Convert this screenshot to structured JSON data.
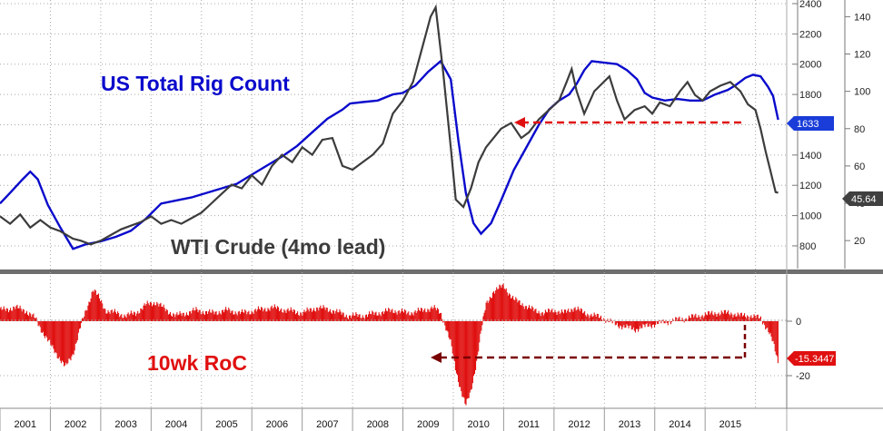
{
  "chart_data": [
    {
      "type": "line",
      "title": "",
      "annotations": {
        "rig_label": "US Total Rig Count",
        "wti_label": "WTI Crude (4mo lead)"
      },
      "x": [
        "2001",
        "2002",
        "2003",
        "2004",
        "2005",
        "2006",
        "2007",
        "2008",
        "2009",
        "2010",
        "2011",
        "2012",
        "2013",
        "2014",
        "2015"
      ],
      "y_left": {
        "ticks": [
          "800",
          "1000",
          "1200",
          "1400",
          "1600",
          "1800",
          "2000",
          "2200",
          "2400"
        ],
        "ylim": [
          650,
          2400
        ]
      },
      "y_right": {
        "ticks": [
          "20",
          "40",
          "60",
          "80",
          "100",
          "120",
          "140"
        ],
        "ylim": [
          5,
          147
        ]
      },
      "series": [
        {
          "name": "US Total Rig Count",
          "axis": "left",
          "color": "#0a0acc",
          "points": [
            [
              2000.0,
              1080
            ],
            [
              2000.2,
              1150
            ],
            [
              2000.45,
              1240
            ],
            [
              2000.6,
              1290
            ],
            [
              2000.75,
              1240
            ],
            [
              2000.95,
              1070
            ],
            [
              2001.2,
              920
            ],
            [
              2001.45,
              780
            ],
            [
              2001.7,
              810
            ],
            [
              2002.0,
              830
            ],
            [
              2002.3,
              860
            ],
            [
              2002.6,
              900
            ],
            [
              2002.9,
              980
            ],
            [
              2003.2,
              1080
            ],
            [
              2003.5,
              1100
            ],
            [
              2003.8,
              1120
            ],
            [
              2004.1,
              1150
            ],
            [
              2004.4,
              1180
            ],
            [
              2004.7,
              1210
            ],
            [
              2005.0,
              1270
            ],
            [
              2005.3,
              1330
            ],
            [
              2005.6,
              1390
            ],
            [
              2005.9,
              1460
            ],
            [
              2006.2,
              1550
            ],
            [
              2006.5,
              1640
            ],
            [
              2006.8,
              1700
            ],
            [
              2006.95,
              1740
            ],
            [
              2007.2,
              1750
            ],
            [
              2007.5,
              1760
            ],
            [
              2007.8,
              1800
            ],
            [
              2008.0,
              1810
            ],
            [
              2008.25,
              1860
            ],
            [
              2008.5,
              1950
            ],
            [
              2008.75,
              2020
            ],
            [
              2008.95,
              1900
            ],
            [
              2009.1,
              1500
            ],
            [
              2009.25,
              1150
            ],
            [
              2009.4,
              950
            ],
            [
              2009.55,
              880
            ],
            [
              2009.75,
              950
            ],
            [
              2009.95,
              1100
            ],
            [
              2010.2,
              1300
            ],
            [
              2010.45,
              1450
            ],
            [
              2010.7,
              1600
            ],
            [
              2010.9,
              1700
            ],
            [
              2011.1,
              1760
            ],
            [
              2011.3,
              1800
            ],
            [
              2011.45,
              1870
            ],
            [
              2011.6,
              1960
            ],
            [
              2011.75,
              2020
            ],
            [
              2012.0,
              2010
            ],
            [
              2012.25,
              2000
            ],
            [
              2012.45,
              1960
            ],
            [
              2012.65,
              1900
            ],
            [
              2012.8,
              1810
            ],
            [
              2012.95,
              1780
            ],
            [
              2013.2,
              1760
            ],
            [
              2013.45,
              1770
            ],
            [
              2013.7,
              1760
            ],
            [
              2013.95,
              1760
            ],
            [
              2014.2,
              1800
            ],
            [
              2014.45,
              1830
            ],
            [
              2014.6,
              1860
            ],
            [
              2014.8,
              1910
            ],
            [
              2014.95,
              1930
            ],
            [
              2015.1,
              1920
            ],
            [
              2015.25,
              1850
            ],
            [
              2015.35,
              1790
            ],
            [
              2015.45,
              1633
            ]
          ]
        },
        {
          "name": "WTI Crude (4mo lead)",
          "axis": "right",
          "color": "#3c3c3c",
          "points": [
            [
              2000.0,
              33
            ],
            [
              2000.2,
              29
            ],
            [
              2000.4,
              34
            ],
            [
              2000.6,
              27
            ],
            [
              2000.8,
              31
            ],
            [
              2001.0,
              27
            ],
            [
              2001.2,
              25
            ],
            [
              2001.45,
              21
            ],
            [
              2001.6,
              20
            ],
            [
              2001.8,
              18
            ],
            [
              2002.0,
              20
            ],
            [
              2002.2,
              23
            ],
            [
              2002.4,
              26
            ],
            [
              2002.6,
              28
            ],
            [
              2002.8,
              30
            ],
            [
              2003.0,
              33
            ],
            [
              2003.2,
              29
            ],
            [
              2003.4,
              31
            ],
            [
              2003.6,
              29
            ],
            [
              2003.8,
              32
            ],
            [
              2004.0,
              35
            ],
            [
              2004.2,
              40
            ],
            [
              2004.4,
              45
            ],
            [
              2004.6,
              50
            ],
            [
              2004.8,
              48
            ],
            [
              2005.0,
              55
            ],
            [
              2005.2,
              50
            ],
            [
              2005.4,
              60
            ],
            [
              2005.6,
              66
            ],
            [
              2005.8,
              62
            ],
            [
              2006.0,
              70
            ],
            [
              2006.2,
              66
            ],
            [
              2006.4,
              74
            ],
            [
              2006.6,
              75
            ],
            [
              2006.8,
              60
            ],
            [
              2007.0,
              58
            ],
            [
              2007.2,
              62
            ],
            [
              2007.4,
              66
            ],
            [
              2007.6,
              72
            ],
            [
              2007.8,
              88
            ],
            [
              2008.0,
              95
            ],
            [
              2008.2,
              105
            ],
            [
              2008.4,
              125
            ],
            [
              2008.55,
              140
            ],
            [
              2008.65,
              145
            ],
            [
              2008.8,
              110
            ],
            [
              2008.95,
              70
            ],
            [
              2009.05,
              42
            ],
            [
              2009.2,
              38
            ],
            [
              2009.35,
              48
            ],
            [
              2009.5,
              62
            ],
            [
              2009.65,
              70
            ],
            [
              2009.8,
              75
            ],
            [
              2009.95,
              80
            ],
            [
              2010.15,
              83
            ],
            [
              2010.35,
              75
            ],
            [
              2010.5,
              78
            ],
            [
              2010.7,
              85
            ],
            [
              2010.9,
              90
            ],
            [
              2011.1,
              95
            ],
            [
              2011.25,
              105
            ],
            [
              2011.35,
              112
            ],
            [
              2011.45,
              100
            ],
            [
              2011.6,
              88
            ],
            [
              2011.8,
              100
            ],
            [
              2011.95,
              104
            ],
            [
              2012.1,
              108
            ],
            [
              2012.25,
              95
            ],
            [
              2012.4,
              85
            ],
            [
              2012.6,
              90
            ],
            [
              2012.8,
              92
            ],
            [
              2012.95,
              88
            ],
            [
              2013.1,
              94
            ],
            [
              2013.3,
              92
            ],
            [
              2013.5,
              100
            ],
            [
              2013.65,
              105
            ],
            [
              2013.8,
              98
            ],
            [
              2013.95,
              95
            ],
            [
              2014.1,
              100
            ],
            [
              2014.3,
              103
            ],
            [
              2014.5,
              105
            ],
            [
              2014.7,
              100
            ],
            [
              2014.85,
              93
            ],
            [
              2015.0,
              90
            ],
            [
              2015.1,
              80
            ],
            [
              2015.2,
              68
            ],
            [
              2015.3,
              57
            ],
            [
              2015.4,
              46
            ],
            [
              2015.45,
              45.64
            ]
          ]
        }
      ],
      "last_values": {
        "rig": "1633",
        "wti": "45.64"
      },
      "colors": {
        "rig": "#0a0acc",
        "wti": "#3c3c3c",
        "arrow": "#e01010",
        "roc": "#e01010",
        "roc_arrow": "#7a0000",
        "grid": "#a8a8a8"
      }
    },
    {
      "type": "bar",
      "annotations": {
        "roc_label": "10wk RoC"
      },
      "y_right": {
        "ticks": [
          "0",
          "-20"
        ],
        "ylim": [
          -32,
          17
        ]
      },
      "last_value": "-15.3447",
      "roc_points": [
        [
          2000.0,
          4
        ],
        [
          2000.3,
          5
        ],
        [
          2000.5,
          4
        ],
        [
          2000.7,
          1
        ],
        [
          2000.85,
          -4
        ],
        [
          2001.05,
          -10
        ],
        [
          2001.2,
          -14
        ],
        [
          2001.3,
          -17
        ],
        [
          2001.45,
          -12
        ],
        [
          2001.6,
          -2
        ],
        [
          2001.75,
          6
        ],
        [
          2001.85,
          12
        ],
        [
          2001.95,
          9
        ],
        [
          2002.1,
          4
        ],
        [
          2002.3,
          3
        ],
        [
          2002.5,
          2
        ],
        [
          2002.7,
          3
        ],
        [
          2002.9,
          6
        ],
        [
          2003.1,
          7
        ],
        [
          2003.3,
          4
        ],
        [
          2003.5,
          2
        ],
        [
          2003.7,
          3
        ],
        [
          2003.9,
          4
        ],
        [
          2004.2,
          3
        ],
        [
          2004.5,
          4
        ],
        [
          2004.8,
          3
        ],
        [
          2005.1,
          4
        ],
        [
          2005.4,
          5
        ],
        [
          2005.7,
          4
        ],
        [
          2006.0,
          3
        ],
        [
          2006.3,
          5
        ],
        [
          2006.6,
          4
        ],
        [
          2006.9,
          2
        ],
        [
          2007.2,
          2
        ],
        [
          2007.5,
          3
        ],
        [
          2007.8,
          4
        ],
        [
          2008.1,
          3
        ],
        [
          2008.4,
          4
        ],
        [
          2008.6,
          5
        ],
        [
          2008.75,
          3
        ],
        [
          2008.85,
          -2
        ],
        [
          2008.95,
          -8
        ],
        [
          2009.05,
          -18
        ],
        [
          2009.15,
          -25
        ],
        [
          2009.25,
          -31
        ],
        [
          2009.35,
          -26
        ],
        [
          2009.45,
          -16
        ],
        [
          2009.55,
          -4
        ],
        [
          2009.65,
          6
        ],
        [
          2009.8,
          11
        ],
        [
          2010.0,
          13
        ],
        [
          2010.2,
          8
        ],
        [
          2010.4,
          6
        ],
        [
          2010.6,
          4
        ],
        [
          2010.8,
          3
        ],
        [
          2011.0,
          4
        ],
        [
          2011.2,
          3
        ],
        [
          2011.4,
          5
        ],
        [
          2011.6,
          3
        ],
        [
          2011.8,
          2
        ],
        [
          2012.0,
          1
        ],
        [
          2012.2,
          -1
        ],
        [
          2012.4,
          -2
        ],
        [
          2012.6,
          -3
        ],
        [
          2012.8,
          -2
        ],
        [
          2013.0,
          -1
        ],
        [
          2013.3,
          0
        ],
        [
          2013.6,
          1
        ],
        [
          2013.9,
          2
        ],
        [
          2014.2,
          3
        ],
        [
          2014.5,
          3
        ],
        [
          2014.7,
          2
        ],
        [
          2014.9,
          2
        ],
        [
          2015.1,
          1
        ],
        [
          2015.25,
          -3
        ],
        [
          2015.35,
          -8
        ],
        [
          2015.45,
          -15.3
        ]
      ]
    }
  ]
}
